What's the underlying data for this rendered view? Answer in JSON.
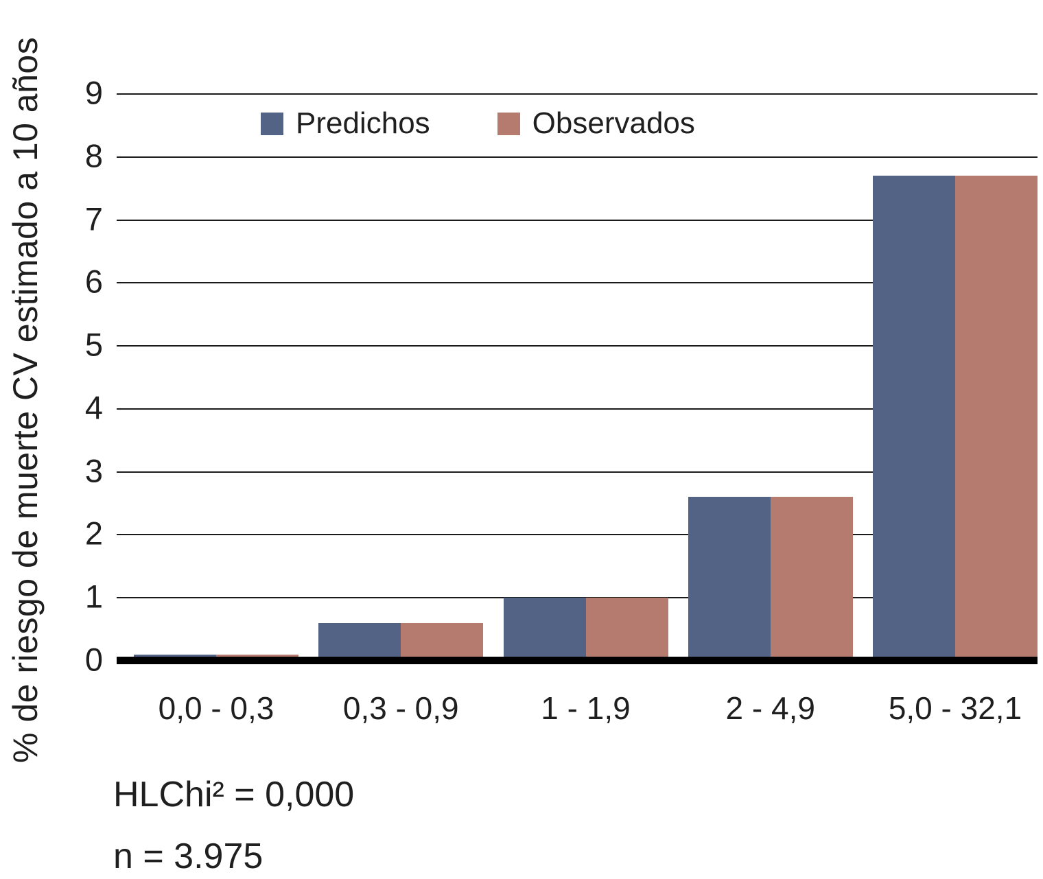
{
  "chart_data": {
    "type": "bar",
    "categories": [
      "0,0 - 0,3",
      "0,3 - 0,9",
      "1 - 1,9",
      "2 - 4,9",
      "5,0 - 32,1"
    ],
    "series": [
      {
        "name": "Predichos",
        "color": "#526385",
        "values": [
          0.1,
          0.6,
          1.0,
          2.6,
          7.7
        ]
      },
      {
        "name": "Observados",
        "color": "#b67b6f",
        "values": [
          0.1,
          0.6,
          1.0,
          2.6,
          7.7
        ]
      }
    ],
    "title": "",
    "xlabel": "",
    "ylabel": "% de riesgo de muerte CV estimado a 10 años",
    "ylim": [
      0,
      9
    ],
    "y_ticks": [
      0,
      1,
      2,
      3,
      4,
      5,
      6,
      7,
      8,
      9
    ],
    "grid": true,
    "legend_position": "top-inside"
  },
  "legend": [
    {
      "label": "Predichos",
      "color": "#526385"
    },
    {
      "label": "Observados",
      "color": "#b67b6f"
    }
  ],
  "y_axis": {
    "title": "% de riesgo de muerte CV estimado a 10 años"
  },
  "annotations": {
    "hlchi": "HLChi² = 0,000",
    "n": "n = 3.975"
  }
}
